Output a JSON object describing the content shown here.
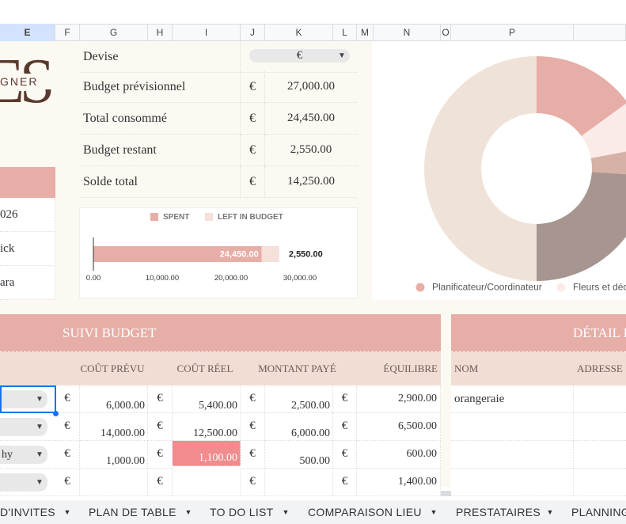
{
  "columns": [
    "E",
    "F",
    "G",
    "H",
    "I",
    "J",
    "K",
    "L",
    "M",
    "N",
    "O",
    "P"
  ],
  "logo": {
    "letters": "ES",
    "text": "GNER"
  },
  "left_cells": [
    "026",
    "ick",
    "ara"
  ],
  "summary": {
    "rows": [
      {
        "label": "Devise",
        "value": "€"
      },
      {
        "label": "Budget prévisionnel",
        "symbol": "€",
        "value": "27,000.00"
      },
      {
        "label": "Total consommé",
        "symbol": "€",
        "value": "24,450.00"
      },
      {
        "label": "Budget restant",
        "symbol": "€",
        "value": "2,550.00"
      },
      {
        "label": "Solde total",
        "symbol": "€",
        "value": "14,250.00"
      }
    ]
  },
  "bar_chart": {
    "type": "bar",
    "orientation": "horizontal",
    "stacked": true,
    "series": [
      {
        "name": "SPENT",
        "color": "#e6aea6",
        "values": [
          24450
        ],
        "value_labels": [
          "24,450.00"
        ]
      },
      {
        "name": "LEFT IN BUDGET",
        "color": "#f6e0da",
        "values": [
          2550
        ],
        "value_labels": [
          "2,550.00"
        ]
      }
    ],
    "xlim": [
      0,
      30000
    ],
    "xticks": [
      {
        "value": 0,
        "label": "0.00"
      },
      {
        "value": 10000,
        "label": "10,000.00"
      },
      {
        "value": 20000,
        "label": "20,000.00"
      },
      {
        "value": 30000,
        "label": "30,000.00"
      }
    ]
  },
  "donut_chart": {
    "type": "pie",
    "donut": true,
    "categories": [
      "Planificateur/Coordinateur",
      "Fleurs et déc",
      null,
      null,
      null
    ],
    "values": [
      15,
      7,
      4,
      24,
      50
    ],
    "colors": [
      "#e6aea6",
      "#fbebe8",
      "#d6b1a5",
      "#a6968f",
      "#efe3d9"
    ]
  },
  "budget": {
    "title": "SUIVI BUDGET",
    "headers": [
      "COÛT PRÉVU",
      "COÛT RÉEL",
      "MONTANT PAYÉ",
      "ÉQUILIBRE"
    ],
    "rows": [
      {
        "choice": null,
        "cells": [
          "€",
          "6,000.00",
          "€",
          "5,400.00",
          "€",
          "2,500.00",
          "€",
          "2,900.00"
        ]
      },
      {
        "choice": null,
        "cells": [
          "€",
          "14,000.00",
          "€",
          "12,500.00",
          "€",
          "6,000.00",
          "€",
          "6,500.00"
        ]
      },
      {
        "choice": "hy",
        "cells": [
          "€",
          "1,000.00",
          "€",
          "1,100.00",
          "€",
          "500.00",
          "€",
          "600.00"
        ]
      },
      {
        "choice": null,
        "cells": [
          "€",
          null,
          "€",
          null,
          "€",
          null,
          "€",
          "1,400.00"
        ]
      }
    ]
  },
  "detail": {
    "title": "DÉTAIL P",
    "headers": [
      "NOM",
      "ADRESSE"
    ],
    "rows": [
      [
        "orangeraie"
      ]
    ]
  },
  "tabs": [
    "D'INVITES",
    "PLAN DE TABLE",
    "TO DO LIST",
    "COMPARAISON LIEU",
    "PRESTATAIRES",
    "PLANNING"
  ]
}
